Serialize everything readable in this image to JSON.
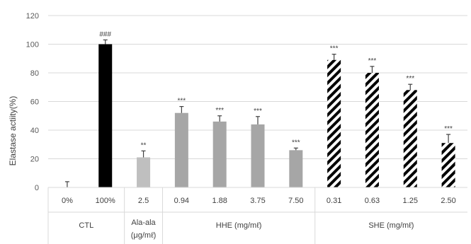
{
  "chart_data": {
    "type": "bar",
    "ylabel": "Elastase actiity(%)",
    "ylim": [
      0,
      120
    ],
    "yticks": [
      0,
      20,
      40,
      60,
      80,
      100,
      120
    ],
    "grid": true,
    "legend": "none",
    "groups": [
      {
        "label": "CTL",
        "categories": [
          "0%",
          "100%"
        ]
      },
      {
        "label": "Ala-ala\n(μg/mℓ)",
        "label_lines": [
          "Ala-ala",
          "(μg/mℓ)"
        ],
        "categories": [
          "2.5"
        ]
      },
      {
        "label": "HHE (mg/mℓ)",
        "categories": [
          "0.94",
          "1.88",
          "3.75",
          "7.50"
        ]
      },
      {
        "label": "SHE (mg/mℓ)",
        "categories": [
          "0.31",
          "0.63",
          "1.25",
          "2.50"
        ]
      }
    ],
    "bars": [
      {
        "category": "0%",
        "group": "CTL",
        "value": 0,
        "error": 4,
        "label": "",
        "fill": "none"
      },
      {
        "category": "100%",
        "group": "CTL",
        "value": 100,
        "error": 3,
        "label": "###",
        "fill": "#000000"
      },
      {
        "category": "2.5",
        "group": "Ala-ala",
        "value": 21,
        "error": 4.5,
        "label": "**",
        "fill": "#bfbfbf"
      },
      {
        "category": "0.94",
        "group": "HHE (mg/mℓ)",
        "value": 52,
        "error": 4.5,
        "label": "***",
        "fill": "#a6a6a6"
      },
      {
        "category": "1.88",
        "group": "HHE (mg/mℓ)",
        "value": 46,
        "error": 4,
        "label": "***",
        "fill": "#a6a6a6"
      },
      {
        "category": "3.75",
        "group": "HHE (mg/mℓ)",
        "value": 44,
        "error": 5.5,
        "label": "***",
        "fill": "#a6a6a6"
      },
      {
        "category": "7.50",
        "group": "HHE (mg/mℓ)",
        "value": 26,
        "error": 1.5,
        "label": "***",
        "fill": "#a6a6a6"
      },
      {
        "category": "0.31",
        "group": "SHE (mg/mℓ)",
        "value": 89,
        "error": 4,
        "label": "***",
        "fill": "hatch"
      },
      {
        "category": "0.63",
        "group": "SHE (mg/mℓ)",
        "value": 80,
        "error": 4.5,
        "label": "***",
        "fill": "hatch"
      },
      {
        "category": "1.25",
        "group": "SHE (mg/mℓ)",
        "value": 68,
        "error": 4,
        "label": "***",
        "fill": "hatch"
      },
      {
        "category": "2.50",
        "group": "SHE (mg/mℓ)",
        "value": 31,
        "error": 6,
        "label": "***",
        "fill": "hatch"
      }
    ],
    "colors": {
      "hatch_stripe": "#000000",
      "grid": "#d9d9d9",
      "error_bar": "#404040"
    }
  }
}
